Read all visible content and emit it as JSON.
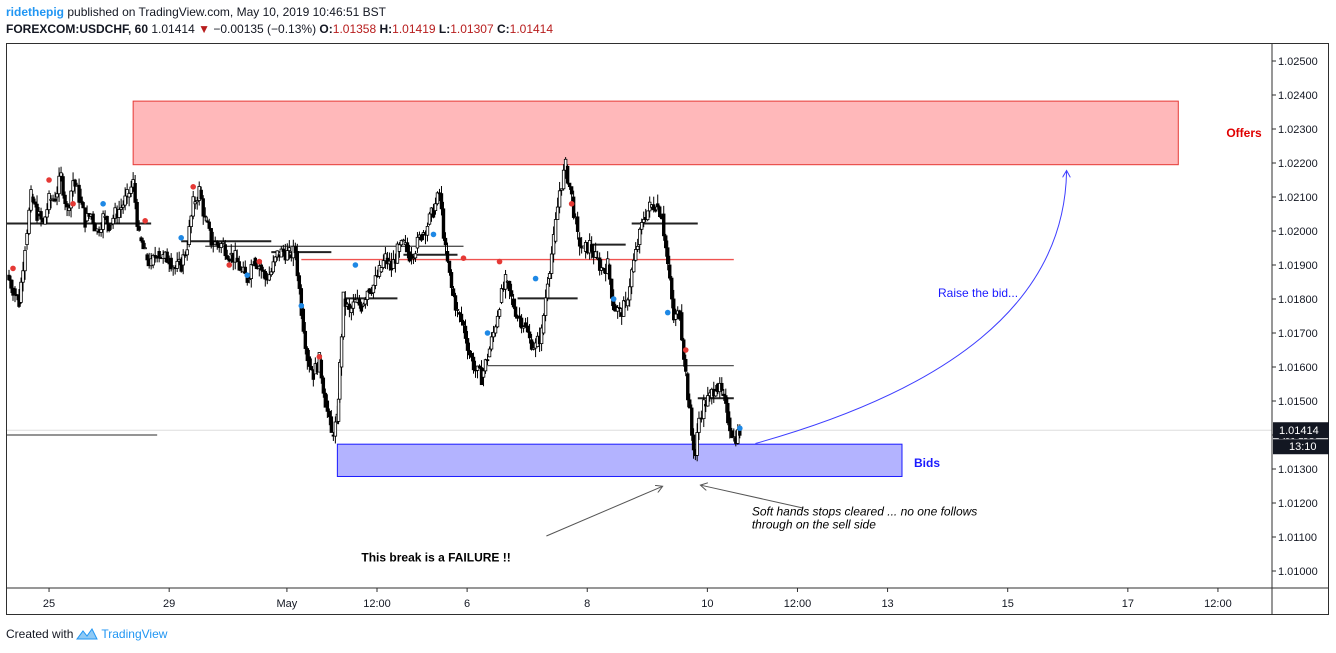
{
  "header": {
    "author": "ridethepig",
    "published_text": "published on TradingView.com, May 10, 2019 10:46:51 BST",
    "symbol": "FOREXCOM:USDCHF, 60",
    "last": "1.01414",
    "change": "−0.00135 (−0.13%)",
    "o_label": "O:",
    "o_value": "1.01358",
    "h_label": "H:",
    "h_value": "1.01419",
    "l_label": "L:",
    "l_value": "1.01307",
    "c_label": "C:",
    "c_value": "1.01414"
  },
  "footer": {
    "created_with": "Created with",
    "brand": "TradingView"
  },
  "colors": {
    "offers_fill": "#ffb8ba",
    "offers_border": "#e53935",
    "bids_fill": "#b3b3ff",
    "bids_border": "#1a1aff",
    "accent": "#2196f3",
    "down": "#b71c1c"
  },
  "chart_data": {
    "type": "candlestick",
    "ylim": [
      1.0095,
      1.0255
    ],
    "y_ticks": [
      "1.02500",
      "1.02400",
      "1.02300",
      "1.02200",
      "1.02100",
      "1.02000",
      "1.01900",
      "1.01800",
      "1.01700",
      "1.01600",
      "1.01500",
      "1.01400",
      "1.01300",
      "1.01200",
      "1.01100",
      "1.01000"
    ],
    "x_ticks": [
      {
        "label": "25",
        "t": 3.5
      },
      {
        "label": "29",
        "t": 13.5
      },
      {
        "label": "May",
        "t": 23.3
      },
      {
        "label": "12:00",
        "t": 30.8
      },
      {
        "label": "6",
        "t": 38.3
      },
      {
        "label": "8",
        "t": 48.3
      },
      {
        "label": "10",
        "t": 58.3
      },
      {
        "label": "12:00",
        "t": 65.8
      },
      {
        "label": "13",
        "t": 73.3
      },
      {
        "label": "15",
        "t": 83.3
      },
      {
        "label": "17",
        "t": 93.3
      },
      {
        "label": "12:00",
        "t": 100.8
      }
    ],
    "t_range": [
      0,
      105.3
    ],
    "price_path": [
      [
        0,
        1.0187
      ],
      [
        0.5,
        1.0183
      ],
      [
        1,
        1.0179
      ],
      [
        1.5,
        1.0196
      ],
      [
        2,
        1.021
      ],
      [
        2.5,
        1.0205
      ],
      [
        3,
        1.0202
      ],
      [
        3.5,
        1.0209
      ],
      [
        4,
        1.021
      ],
      [
        4.5,
        1.0216
      ],
      [
        5,
        1.0206
      ],
      [
        5.5,
        1.0215
      ],
      [
        6,
        1.021
      ],
      [
        6.5,
        1.0203
      ],
      [
        7,
        1.0205
      ],
      [
        7.5,
        1.02
      ],
      [
        8,
        1.0204
      ],
      [
        8.5,
        1.0202
      ],
      [
        9,
        1.0205
      ],
      [
        9.5,
        1.0207
      ],
      [
        10,
        1.021
      ],
      [
        10.5,
        1.0214
      ],
      [
        11,
        1.0198
      ],
      [
        11.5,
        1.0193
      ],
      [
        12,
        1.019
      ],
      [
        12.5,
        1.0194
      ],
      [
        13,
        1.0192
      ],
      [
        13.5,
        1.0192
      ],
      [
        14,
        1.0189
      ],
      [
        14.5,
        1.019
      ],
      [
        15,
        1.0196
      ],
      [
        15.5,
        1.0208
      ],
      [
        16,
        1.0212
      ],
      [
        16.5,
        1.0203
      ],
      [
        17,
        1.0197
      ],
      [
        17.5,
        1.0196
      ],
      [
        18,
        1.0196
      ],
      [
        18.5,
        1.0193
      ],
      [
        19,
        1.0192
      ],
      [
        19.5,
        1.0188
      ],
      [
        20,
        1.0186
      ],
      [
        20.5,
        1.0192
      ],
      [
        21,
        1.019
      ],
      [
        21.5,
        1.0186
      ],
      [
        22,
        1.0188
      ],
      [
        22.5,
        1.0193
      ],
      [
        23,
        1.0194
      ],
      [
        23.5,
        1.0193
      ],
      [
        24,
        1.0194
      ],
      [
        24.5,
        1.0177
      ],
      [
        25,
        1.0163
      ],
      [
        25.5,
        1.0158
      ],
      [
        26,
        1.0162
      ],
      [
        26.5,
        1.015
      ],
      [
        27,
        1.014
      ],
      [
        27.5,
        1.0144
      ],
      [
        27.7,
        1.016
      ],
      [
        28,
        1.018
      ],
      [
        28.5,
        1.0176
      ],
      [
        29,
        1.0179
      ],
      [
        29.5,
        1.0178
      ],
      [
        30,
        1.0183
      ],
      [
        30.5,
        1.0184
      ],
      [
        31,
        1.0188
      ],
      [
        31.5,
        1.0192
      ],
      [
        32,
        1.0189
      ],
      [
        32.5,
        1.0194
      ],
      [
        33,
        1.0196
      ],
      [
        33.5,
        1.0193
      ],
      [
        34,
        1.0195
      ],
      [
        34.5,
        1.0199
      ],
      [
        35,
        1.0202
      ],
      [
        35.5,
        1.0206
      ],
      [
        36,
        1.0211
      ],
      [
        36.5,
        1.0194
      ],
      [
        37,
        1.0183
      ],
      [
        37.5,
        1.0176
      ],
      [
        38,
        1.0172
      ],
      [
        38.5,
        1.0164
      ],
      [
        39,
        1.0159
      ],
      [
        39.5,
        1.0157
      ],
      [
        40,
        1.0163
      ],
      [
        40.5,
        1.017
      ],
      [
        41,
        1.0179
      ],
      [
        41.5,
        1.0185
      ],
      [
        42,
        1.018
      ],
      [
        42.5,
        1.0175
      ],
      [
        43,
        1.0173
      ],
      [
        43.5,
        1.0168
      ],
      [
        44,
        1.0166
      ],
      [
        44.5,
        1.017
      ],
      [
        45,
        1.0186
      ],
      [
        45.5,
        1.0197
      ],
      [
        46,
        1.0212
      ],
      [
        46.5,
        1.0219
      ],
      [
        47,
        1.021
      ],
      [
        47.5,
        1.0198
      ],
      [
        48,
        1.0194
      ],
      [
        48.5,
        1.0196
      ],
      [
        49,
        1.0192
      ],
      [
        49.5,
        1.0189
      ],
      [
        50,
        1.019
      ],
      [
        50.5,
        1.0178
      ],
      [
        51,
        1.0176
      ],
      [
        51.5,
        1.0178
      ],
      [
        52,
        1.0188
      ],
      [
        52.5,
        1.0196
      ],
      [
        53,
        1.0204
      ],
      [
        53.5,
        1.0207
      ],
      [
        54,
        1.0208
      ],
      [
        54.5,
        1.0205
      ],
      [
        55,
        1.019
      ],
      [
        55.5,
        1.0174
      ],
      [
        56,
        1.0176
      ],
      [
        56.5,
        1.0158
      ],
      [
        57,
        1.014
      ],
      [
        57.3,
        1.0134
      ],
      [
        57.6,
        1.0145
      ],
      [
        58,
        1.0149
      ],
      [
        58.5,
        1.0151
      ],
      [
        59,
        1.0155
      ],
      [
        59.5,
        1.0152
      ],
      [
        60,
        1.0145
      ],
      [
        60.5,
        1.0139
      ],
      [
        61,
        1.0141
      ]
    ],
    "signal_markers": {
      "red": [
        [
          0.5,
          1.0189
        ],
        [
          3.5,
          1.0215
        ],
        [
          5.5,
          1.0208
        ],
        [
          11.5,
          1.0203
        ],
        [
          15.5,
          1.0213
        ],
        [
          18.5,
          1.019
        ],
        [
          21,
          1.0191
        ],
        [
          26,
          1.0163
        ],
        [
          38,
          1.0192
        ],
        [
          41,
          1.0191
        ],
        [
          47,
          1.0208
        ],
        [
          56.5,
          1.0165
        ]
      ],
      "blue": [
        [
          8,
          1.0208
        ],
        [
          14.5,
          1.0198
        ],
        [
          20,
          1.0187
        ],
        [
          24.5,
          1.0178
        ],
        [
          29,
          1.019
        ],
        [
          35.5,
          1.0199
        ],
        [
          40,
          1.017
        ],
        [
          44,
          1.0186
        ],
        [
          50.5,
          1.018
        ],
        [
          55,
          1.0176
        ],
        [
          61,
          1.0142
        ]
      ]
    },
    "zones": [
      {
        "name": "offers",
        "label": "Offers",
        "t_start": 10.5,
        "t_end": 97.5,
        "low": 1.02195,
        "high": 1.02382
      },
      {
        "name": "bids",
        "label": "Bids",
        "t_start": 27.5,
        "t_end": 74.5,
        "low": 1.01278,
        "high": 1.01373
      }
    ],
    "levels": [
      {
        "price": 1.01916,
        "t_start": 24.5,
        "t_end": 60.5,
        "color": "#ef5350"
      },
      {
        "price": 1.01604,
        "t_start": 40,
        "t_end": 60.5,
        "color": "#555555"
      },
      {
        "price": 1.02022,
        "t_start": 0,
        "t_end": 12,
        "color": "#222222"
      },
      {
        "price": 1.01955,
        "t_start": 16.5,
        "t_end": 38,
        "color": "#555555"
      },
      {
        "price": 1.014,
        "t_start": 0,
        "t_end": 12.5,
        "color": "#555555"
      },
      {
        "price": 1.0197,
        "t_start": 14.5,
        "t_end": 22,
        "color": "#222222"
      },
      {
        "price": 1.01938,
        "t_start": 22,
        "t_end": 27,
        "color": "#222222"
      },
      {
        "price": 1.01802,
        "t_start": 28,
        "t_end": 32.5,
        "color": "#222222"
      },
      {
        "price": 1.0193,
        "t_start": 33,
        "t_end": 37.5,
        "color": "#222222"
      },
      {
        "price": 1.01802,
        "t_start": 42.5,
        "t_end": 47.5,
        "color": "#222222"
      },
      {
        "price": 1.0196,
        "t_start": 48.5,
        "t_end": 51.5,
        "color": "#222222"
      },
      {
        "price": 1.02022,
        "t_start": 52,
        "t_end": 57.5,
        "color": "#222222"
      },
      {
        "price": 1.01508,
        "t_start": 57.5,
        "t_end": 60.5,
        "color": "#222222"
      }
    ],
    "annotations": [
      {
        "name": "offers-label",
        "text": "Offers",
        "t": 101.5,
        "price": 1.02288,
        "color": "#e00000",
        "weight": "bold"
      },
      {
        "name": "bids-label",
        "text": "Bids",
        "t": 75.5,
        "price": 1.01318,
        "color": "#1a1aff",
        "weight": "bold"
      },
      {
        "name": "raise-bid-label",
        "text": "Raise the bid...",
        "t": 77.5,
        "price": 1.01818,
        "color": "#1a1aff",
        "weight": "normal"
      },
      {
        "name": "failure-label",
        "text": "This break is a FAILURE !!",
        "t": 29.5,
        "price": 1.0104,
        "color": "#000000",
        "weight": "bold"
      },
      {
        "name": "soft-hands-label-1",
        "text": "Soft hands stops cleared ... no one follows",
        "t": 62,
        "price": 1.01175,
        "color": "#000000",
        "weight": "italic"
      },
      {
        "name": "soft-hands-label-2",
        "text": "through on the sell side",
        "t": 62,
        "price": 1.01137,
        "color": "#000000",
        "weight": "italic"
      }
    ],
    "last_price_label": "1.01414",
    "last_price": 1.01414,
    "countdown_label": "13:10"
  }
}
